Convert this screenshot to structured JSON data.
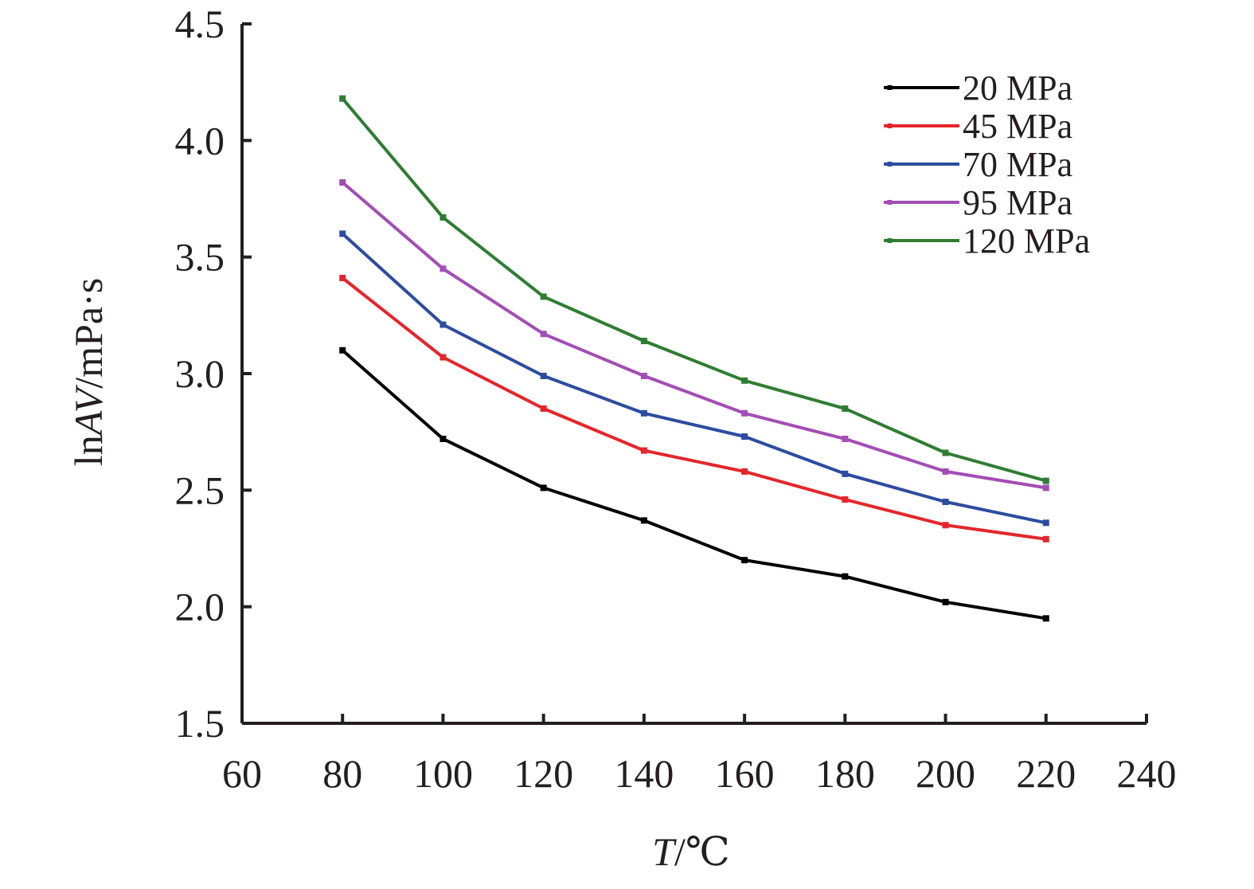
{
  "chart_data": {
    "type": "line",
    "xlabel": {
      "italic": "T",
      "rest": "/℃"
    },
    "ylabel": {
      "prefix": "ln",
      "italic": "AV",
      "suffix": "/mPa·s"
    },
    "xlim": [
      60,
      240
    ],
    "ylim": [
      1.5,
      4.5
    ],
    "xticks": [
      "60",
      "80",
      "100",
      "120",
      "140",
      "160",
      "180",
      "200",
      "220",
      "240"
    ],
    "yticks": [
      "1.5",
      "2.0",
      "2.5",
      "3.0",
      "3.5",
      "4.0",
      "4.5"
    ],
    "xtick_values": [
      60,
      80,
      100,
      120,
      140,
      160,
      180,
      200,
      220,
      240
    ],
    "ytick_values": [
      1.5,
      2.0,
      2.5,
      3.0,
      3.5,
      4.0,
      4.5
    ],
    "grid": false,
    "legend_position": "top-right",
    "x": [
      80,
      100,
      120,
      140,
      160,
      180,
      200,
      220
    ],
    "series": [
      {
        "name": "20 MPa",
        "color": "#000000",
        "values": [
          3.1,
          2.72,
          2.51,
          2.37,
          2.2,
          2.13,
          2.02,
          1.95
        ]
      },
      {
        "name": "45 MPa",
        "color": "#e4262b",
        "values": [
          3.41,
          3.07,
          2.85,
          2.67,
          2.58,
          2.46,
          2.35,
          2.29
        ]
      },
      {
        "name": "70 MPa",
        "color": "#2c4ca0",
        "values": [
          3.6,
          3.21,
          2.99,
          2.83,
          2.73,
          2.57,
          2.45,
          2.36
        ]
      },
      {
        "name": "95 MPa",
        "color": "#a34db5",
        "values": [
          3.82,
          3.45,
          3.17,
          2.99,
          2.83,
          2.72,
          2.58,
          2.51
        ]
      },
      {
        "name": "120 MPa",
        "color": "#2e7d32",
        "values": [
          4.18,
          3.67,
          3.33,
          3.14,
          2.97,
          2.85,
          2.66,
          2.54
        ]
      }
    ]
  }
}
